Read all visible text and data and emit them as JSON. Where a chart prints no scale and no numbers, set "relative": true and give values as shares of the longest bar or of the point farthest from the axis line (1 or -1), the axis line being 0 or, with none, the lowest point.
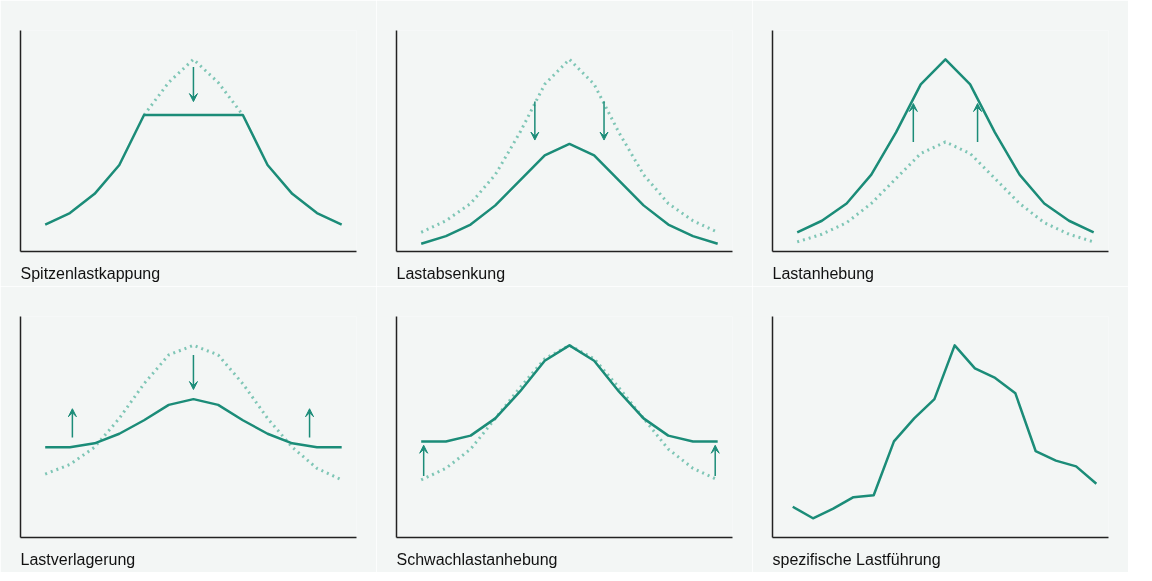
{
  "chart_data": [
    {
      "type": "line",
      "title": "Spitzenlastkappung",
      "relative": true,
      "tick_labels": false,
      "grid": false,
      "categories": [
        null,
        null,
        null,
        null,
        null,
        null,
        null,
        null,
        null,
        null,
        null,
        null,
        null
      ],
      "series": [
        {
          "color": "#7fc6b6",
          "line_style": "dotted",
          "values": [
            null,
            null,
            null,
            null,
            0.71,
            0.88,
            1.0,
            0.88,
            0.71,
            null,
            null,
            null,
            null
          ]
        },
        {
          "color": "#1b8c78",
          "line_style": "solid",
          "values": [
            0.14,
            0.2,
            0.3,
            0.45,
            0.71,
            0.71,
            0.71,
            0.71,
            0.71,
            0.45,
            0.3,
            0.2,
            0.14
          ]
        }
      ]
    },
    {
      "type": "line",
      "title": "Lastabsenkung",
      "relative": true,
      "tick_labels": false,
      "grid": false,
      "categories": [
        null,
        null,
        null,
        null,
        null,
        null,
        null,
        null,
        null,
        null,
        null,
        null,
        null
      ],
      "series": [
        {
          "color": "#7fc6b6",
          "line_style": "dotted",
          "values": [
            0.1,
            0.16,
            0.25,
            0.4,
            0.62,
            0.87,
            1.0,
            0.87,
            0.62,
            0.4,
            0.25,
            0.16,
            0.1
          ]
        },
        {
          "color": "#1b8c78",
          "line_style": "solid",
          "values": [
            0.04,
            0.08,
            0.14,
            0.24,
            0.37,
            0.5,
            0.56,
            0.5,
            0.37,
            0.24,
            0.14,
            0.08,
            0.04
          ]
        }
      ]
    },
    {
      "type": "line",
      "title": "Lastanhebung",
      "relative": true,
      "tick_labels": false,
      "grid": false,
      "categories": [
        null,
        null,
        null,
        null,
        null,
        null,
        null,
        null,
        null,
        null,
        null,
        null,
        null
      ],
      "series": [
        {
          "color": "#7fc6b6",
          "line_style": "dotted",
          "values": [
            0.05,
            0.09,
            0.15,
            0.25,
            0.38,
            0.51,
            0.57,
            0.51,
            0.38,
            0.25,
            0.15,
            0.09,
            0.05
          ]
        },
        {
          "color": "#1b8c78",
          "line_style": "solid",
          "values": [
            0.1,
            0.16,
            0.25,
            0.4,
            0.62,
            0.87,
            1.0,
            0.87,
            0.62,
            0.4,
            0.25,
            0.16,
            0.1
          ]
        }
      ]
    },
    {
      "type": "line",
      "title": "Lastverlagerung",
      "relative": true,
      "tick_labels": false,
      "grid": false,
      "categories": [
        null,
        null,
        null,
        null,
        null,
        null,
        null,
        null,
        null,
        null,
        null,
        null,
        null
      ],
      "series": [
        {
          "color": "#7fc6b6",
          "line_style": "dotted",
          "values": [
            0.33,
            0.38,
            0.47,
            0.62,
            0.8,
            0.95,
            1.0,
            0.95,
            0.8,
            0.62,
            0.47,
            0.36,
            0.3
          ]
        },
        {
          "color": "#1b8c78",
          "line_style": "solid",
          "values": [
            0.47,
            0.47,
            0.49,
            0.54,
            0.61,
            0.69,
            0.72,
            0.69,
            0.61,
            0.54,
            0.49,
            0.47,
            0.47
          ]
        }
      ]
    },
    {
      "type": "line",
      "title": "Schwachlastanhebung",
      "relative": true,
      "tick_labels": false,
      "grid": false,
      "categories": [
        null,
        null,
        null,
        null,
        null,
        null,
        null,
        null,
        null,
        null,
        null,
        null,
        null
      ],
      "series": [
        {
          "color": "#7fc6b6",
          "line_style": "dotted",
          "values": [
            0.3,
            0.36,
            0.46,
            0.62,
            0.78,
            0.93,
            1.0,
            0.93,
            0.78,
            0.62,
            0.46,
            0.36,
            0.3
          ]
        },
        {
          "color": "#1b8c78",
          "line_style": "solid",
          "values": [
            0.5,
            0.5,
            0.53,
            0.62,
            0.76,
            0.92,
            1.0,
            0.92,
            0.76,
            0.62,
            0.53,
            0.5,
            0.5
          ]
        }
      ]
    },
    {
      "type": "line",
      "title": "spezifische Lastführung",
      "relative": true,
      "tick_labels": false,
      "grid": false,
      "categories": [
        null,
        null,
        null,
        null,
        null,
        null,
        null,
        null,
        null,
        null,
        null,
        null,
        null,
        null,
        null,
        null
      ],
      "series": [
        {
          "color": "#1b8c78",
          "line_style": "solid",
          "values": [
            0.16,
            0.1,
            0.15,
            0.21,
            0.22,
            0.5,
            0.62,
            0.72,
            1.0,
            0.88,
            0.83,
            0.75,
            0.45,
            0.4,
            0.37,
            0.28
          ]
        }
      ]
    }
  ]
}
